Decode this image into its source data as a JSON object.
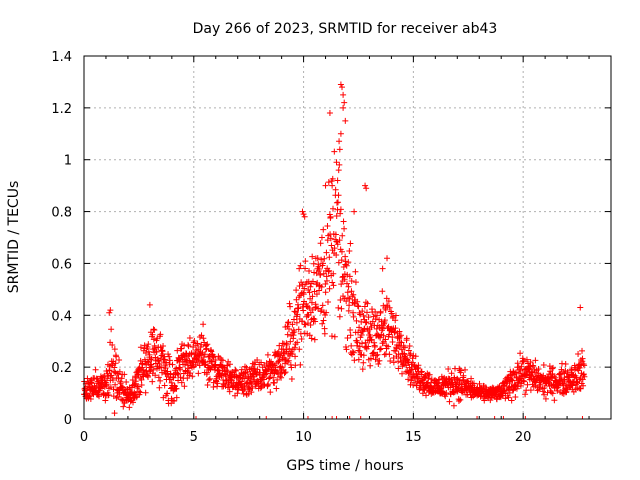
{
  "chart_data": {
    "type": "scatter",
    "title": "Day 266 of 2023, SRMTID for receiver ab43",
    "xlabel": "GPS time / hours",
    "ylabel": "SRMTID / TECUs",
    "xlim": [
      0,
      24
    ],
    "ylim": [
      0,
      1.4
    ],
    "xticks": [
      "0",
      "5",
      "10",
      "15",
      "20"
    ],
    "xtick_values": [
      0,
      5,
      10,
      15,
      20
    ],
    "yticks": [
      "0",
      "0.2",
      "0.4",
      "0.6",
      "0.8",
      "1",
      "1.2",
      "1.4"
    ],
    "ytick_values": [
      0,
      0.2,
      0.4,
      0.6,
      0.8,
      1.0,
      1.2,
      1.4
    ],
    "grid": true,
    "marker": "+",
    "color": "#ff0000",
    "envelope": [
      {
        "x": 0.0,
        "base": 0.12,
        "spread": 0.08
      },
      {
        "x": 1.0,
        "base": 0.13,
        "spread": 0.08
      },
      {
        "x": 1.2,
        "base": 0.18,
        "spread": 0.2
      },
      {
        "x": 1.8,
        "base": 0.11,
        "spread": 0.08
      },
      {
        "x": 2.0,
        "base": 0.08,
        "spread": 0.06
      },
      {
        "x": 2.5,
        "base": 0.15,
        "spread": 0.12
      },
      {
        "x": 3.0,
        "base": 0.25,
        "spread": 0.17
      },
      {
        "x": 3.5,
        "base": 0.22,
        "spread": 0.15
      },
      {
        "x": 4.0,
        "base": 0.15,
        "spread": 0.15
      },
      {
        "x": 4.5,
        "base": 0.22,
        "spread": 0.12
      },
      {
        "x": 5.0,
        "base": 0.24,
        "spread": 0.12
      },
      {
        "x": 5.5,
        "base": 0.25,
        "spread": 0.15
      },
      {
        "x": 6.0,
        "base": 0.18,
        "spread": 0.1
      },
      {
        "x": 7.0,
        "base": 0.14,
        "spread": 0.08
      },
      {
        "x": 8.0,
        "base": 0.16,
        "spread": 0.1
      },
      {
        "x": 9.0,
        "base": 0.22,
        "spread": 0.12
      },
      {
        "x": 9.5,
        "base": 0.32,
        "spread": 0.22
      },
      {
        "x": 10.0,
        "base": 0.45,
        "spread": 0.3
      },
      {
        "x": 10.5,
        "base": 0.5,
        "spread": 0.25
      },
      {
        "x": 11.0,
        "base": 0.55,
        "spread": 0.35
      },
      {
        "x": 11.5,
        "base": 0.7,
        "spread": 0.5
      },
      {
        "x": 12.0,
        "base": 0.5,
        "spread": 0.3
      },
      {
        "x": 12.5,
        "base": 0.35,
        "spread": 0.2
      },
      {
        "x": 13.0,
        "base": 0.3,
        "spread": 0.2
      },
      {
        "x": 13.5,
        "base": 0.35,
        "spread": 0.2
      },
      {
        "x": 14.0,
        "base": 0.33,
        "spread": 0.2
      },
      {
        "x": 14.5,
        "base": 0.28,
        "spread": 0.12
      },
      {
        "x": 15.0,
        "base": 0.18,
        "spread": 0.1
      },
      {
        "x": 16.0,
        "base": 0.12,
        "spread": 0.06
      },
      {
        "x": 17.0,
        "base": 0.14,
        "spread": 0.1
      },
      {
        "x": 18.0,
        "base": 0.1,
        "spread": 0.04
      },
      {
        "x": 19.0,
        "base": 0.1,
        "spread": 0.04
      },
      {
        "x": 19.5,
        "base": 0.15,
        "spread": 0.1
      },
      {
        "x": 20.0,
        "base": 0.18,
        "spread": 0.1
      },
      {
        "x": 21.0,
        "base": 0.14,
        "spread": 0.08
      },
      {
        "x": 22.0,
        "base": 0.15,
        "spread": 0.08
      },
      {
        "x": 22.7,
        "base": 0.18,
        "spread": 0.12
      }
    ],
    "x_end": 22.8,
    "spikes": [
      {
        "x": 11.7,
        "y": 1.29
      },
      {
        "x": 11.75,
        "y": 1.28
      },
      {
        "x": 11.8,
        "y": 1.25
      },
      {
        "x": 11.85,
        "y": 1.22
      },
      {
        "x": 11.8,
        "y": 1.2
      },
      {
        "x": 11.2,
        "y": 1.18
      },
      {
        "x": 11.9,
        "y": 1.15
      },
      {
        "x": 11.7,
        "y": 1.1
      },
      {
        "x": 11.65,
        "y": 1.04
      },
      {
        "x": 11.5,
        "y": 0.99
      },
      {
        "x": 11.6,
        "y": 0.96
      },
      {
        "x": 11.55,
        "y": 0.92
      },
      {
        "x": 11.3,
        "y": 0.9
      },
      {
        "x": 11.0,
        "y": 0.9
      },
      {
        "x": 12.8,
        "y": 0.9
      },
      {
        "x": 12.85,
        "y": 0.89
      },
      {
        "x": 9.95,
        "y": 0.8
      },
      {
        "x": 10.0,
        "y": 0.79
      },
      {
        "x": 10.05,
        "y": 0.78
      },
      {
        "x": 12.3,
        "y": 0.8
      },
      {
        "x": 9.8,
        "y": 0.58
      },
      {
        "x": 22.6,
        "y": 0.43
      },
      {
        "x": 3.0,
        "y": 0.44
      },
      {
        "x": 1.2,
        "y": 0.42
      },
      {
        "x": 1.15,
        "y": 0.41
      },
      {
        "x": 13.8,
        "y": 0.62
      },
      {
        "x": 13.6,
        "y": 0.58
      }
    ],
    "baseline_marks": [
      5.1,
      8.3,
      10.2,
      11.0,
      11.3,
      11.5,
      12.1,
      12.6,
      17.9,
      18.7,
      19.1,
      20.1,
      22.7
    ]
  }
}
